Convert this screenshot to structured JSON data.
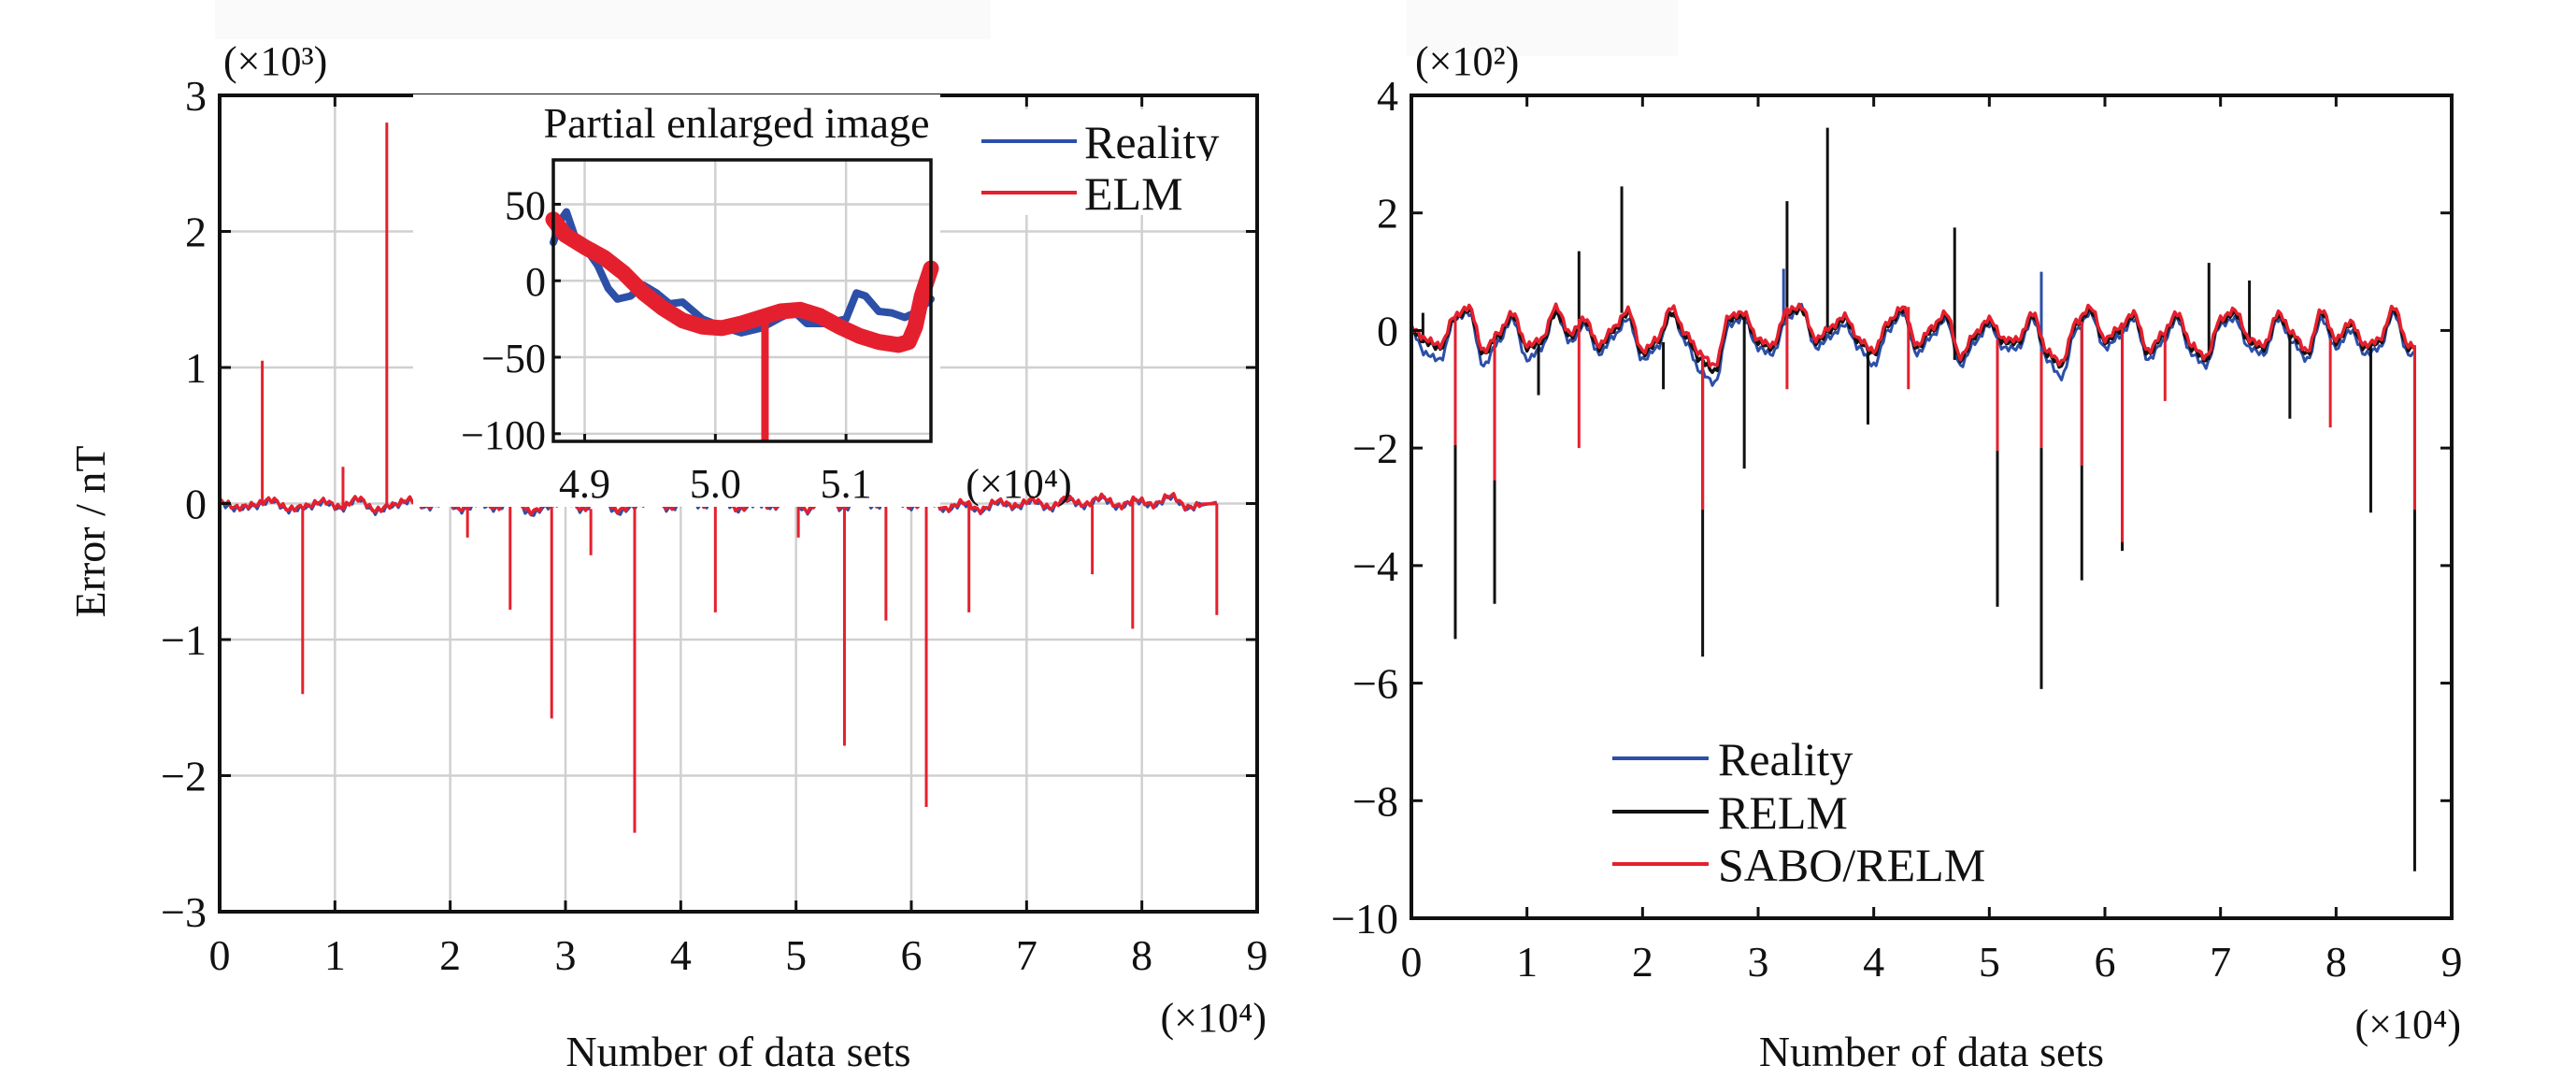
{
  "figure": {
    "colors": {
      "reality": "#2c4fa8",
      "elm": "#e5202e",
      "relm": "#111111",
      "sabo_relm": "#e5202e",
      "grid": "#d0d0d0",
      "axis": "#111111"
    }
  },
  "chart_data": [
    {
      "id": "left",
      "type": "line",
      "title": "",
      "xlabel": "Number of data sets",
      "ylabel": "Error / nT",
      "x_scale_label": "(×10⁴)",
      "y_scale_label": "(×10³)",
      "xlim": [
        0,
        9
      ],
      "ylim": [
        -3,
        3
      ],
      "xticks": [
        0,
        1,
        2,
        3,
        4,
        5,
        6,
        7,
        8,
        9
      ],
      "yticks": [
        -3,
        -2,
        -1,
        0,
        1,
        2,
        3
      ],
      "xtick_labels": [
        "0",
        "1",
        "2",
        "3",
        "4",
        "5",
        "6",
        "7",
        "8",
        "9"
      ],
      "ytick_labels": [
        "−3",
        "−2",
        "−1",
        "0",
        "1",
        "2",
        "3"
      ],
      "grid": true,
      "legend": {
        "placement": "top-right",
        "entries": [
          {
            "label": "Reality",
            "series": "reality"
          },
          {
            "label": "ELM",
            "series": "elm"
          }
        ]
      },
      "x_end": 8.65,
      "series": [
        {
          "name": "Reality",
          "key": "reality",
          "baseline_step": 0.15,
          "baseline": [
            0.0,
            -0.04,
            -0.02,
            0.02,
            -0.05,
            -0.03,
            0.01,
            -0.04,
            0.03,
            -0.06,
            -0.02,
            0.02,
            -0.03,
            0.01,
            -0.05,
            0.0,
            -0.04,
            0.03,
            -0.08,
            -0.02,
            0.02,
            -0.05,
            0.06,
            -0.07,
            -0.02,
            0.02,
            -0.04,
            0.01,
            -0.02,
            0.03,
            -0.05,
            0.0,
            -0.03,
            0.02,
            -0.06,
            0.08,
            -0.04,
            0.01,
            -0.02,
            0.03,
            -0.03,
            0.02,
            -0.05,
            0.0,
            -0.06,
            0.01,
            -0.03,
            0.02,
            -0.04,
            0.03,
            -0.02,
            0.04,
            -0.03,
            0.02,
            -0.02,
            0.05,
            -0.04,
            0.01
          ],
          "spikes": []
        },
        {
          "name": "ELM",
          "key": "elm",
          "baseline_step": 0.15,
          "baseline": [
            0.02,
            -0.03,
            -0.01,
            0.03,
            -0.04,
            -0.02,
            0.02,
            -0.03,
            0.04,
            -0.05,
            -0.01,
            0.03,
            -0.02,
            0.02,
            -0.04,
            0.01,
            -0.03,
            0.04,
            -0.06,
            -0.01,
            0.03,
            -0.04,
            0.05,
            -0.05,
            -0.01,
            0.03,
            -0.03,
            0.02,
            -0.01,
            0.04,
            -0.04,
            0.01,
            -0.02,
            0.03,
            -0.05,
            0.06,
            -0.03,
            0.02,
            -0.01,
            0.04,
            -0.02,
            0.03,
            -0.04,
            0.01,
            -0.05,
            0.02,
            -0.02,
            0.03,
            -0.03,
            0.04,
            -0.01,
            0.05,
            -0.02,
            0.03,
            -0.01,
            0.06,
            -0.03,
            0.0
          ],
          "spikes": [
            [
              0.37,
              1.05
            ],
            [
              0.72,
              -1.4
            ],
            [
              1.07,
              0.27
            ],
            [
              1.45,
              2.8
            ],
            [
              1.8,
              0.15
            ],
            [
              2.15,
              -0.25
            ],
            [
              2.52,
              -0.78
            ],
            [
              2.88,
              -1.58
            ],
            [
              3.22,
              -0.38
            ],
            [
              3.6,
              -2.42
            ],
            [
              3.95,
              0.2
            ],
            [
              4.3,
              -0.8
            ],
            [
              4.68,
              0.27
            ],
            [
              5.02,
              -0.25
            ],
            [
              5.42,
              -1.78
            ],
            [
              5.78,
              -0.86
            ],
            [
              6.13,
              -2.23
            ],
            [
              6.5,
              -0.8
            ],
            [
              7.57,
              -0.52
            ],
            [
              7.92,
              -0.92
            ],
            [
              8.65,
              -0.82
            ]
          ]
        }
      ],
      "inset": {
        "title": "Partial enlarged image",
        "x_scale_label": "(×10⁴)",
        "xlim": [
          4.876,
          5.165
        ],
        "ylim": [
          -105,
          79
        ],
        "xticks": [
          4.9,
          5.0,
          5.1
        ],
        "xtick_labels": [
          "4.9",
          "5.0",
          "5.1"
        ],
        "yticks": [
          -100,
          -50,
          0,
          50
        ],
        "ytick_labels": [
          "−100",
          "−50",
          "0",
          "50"
        ],
        "grid": true,
        "series": [
          {
            "name": "Reality",
            "key": "reality",
            "points": [
              [
                4.876,
                25
              ],
              [
                4.882,
                40
              ],
              [
                4.886,
                45
              ],
              [
                4.892,
                30
              ],
              [
                4.9,
                22
              ],
              [
                4.91,
                10
              ],
              [
                4.918,
                -5
              ],
              [
                4.925,
                -12
              ],
              [
                4.935,
                -10
              ],
              [
                4.945,
                -3
              ],
              [
                4.955,
                -8
              ],
              [
                4.965,
                -15
              ],
              [
                4.975,
                -14
              ],
              [
                4.99,
                -25
              ],
              [
                5.005,
                -30
              ],
              [
                5.02,
                -34
              ],
              [
                5.035,
                -31
              ],
              [
                5.05,
                -24
              ],
              [
                5.06,
                -20
              ],
              [
                5.07,
                -28
              ],
              [
                5.085,
                -28
              ],
              [
                5.1,
                -25
              ],
              [
                5.108,
                -8
              ],
              [
                5.115,
                -10
              ],
              [
                5.125,
                -20
              ],
              [
                5.135,
                -21
              ],
              [
                5.145,
                -24
              ],
              [
                5.155,
                -20
              ],
              [
                5.165,
                -12
              ]
            ]
          },
          {
            "name": "ELM",
            "key": "elm",
            "points": [
              [
                4.876,
                40
              ],
              [
                4.885,
                30
              ],
              [
                4.9,
                22
              ],
              [
                4.915,
                15
              ],
              [
                4.93,
                5
              ],
              [
                4.945,
                -8
              ],
              [
                4.96,
                -18
              ],
              [
                4.975,
                -26
              ],
              [
                4.99,
                -30
              ],
              [
                5.005,
                -31
              ],
              [
                5.02,
                -28
              ],
              [
                5.035,
                -24
              ],
              [
                5.05,
                -20
              ],
              [
                5.065,
                -19
              ],
              [
                5.08,
                -23
              ],
              [
                5.095,
                -30
              ],
              [
                5.11,
                -36
              ],
              [
                5.125,
                -40
              ],
              [
                5.14,
                -42
              ],
              [
                5.148,
                -40
              ],
              [
                5.153,
                -30
              ],
              [
                5.158,
                -10
              ],
              [
                5.165,
                8
              ]
            ],
            "spikes": [
              [
                5.038,
                -105
              ]
            ]
          }
        ]
      }
    },
    {
      "id": "right",
      "type": "line",
      "title": "",
      "xlabel": "Number of data sets",
      "ylabel": "",
      "x_scale_label": "(×10⁴)",
      "y_scale_label": "(×10²)",
      "xlim": [
        0,
        9
      ],
      "ylim": [
        -10,
        4
      ],
      "xticks": [
        0,
        1,
        2,
        3,
        4,
        5,
        6,
        7,
        8,
        9
      ],
      "yticks": [
        -10,
        -8,
        -6,
        -4,
        -2,
        0,
        2,
        4
      ],
      "xtick_labels": [
        "0",
        "1",
        "2",
        "3",
        "4",
        "5",
        "6",
        "7",
        "8",
        "9"
      ],
      "ytick_labels": [
        "−10",
        "−8",
        "−6",
        "−4",
        "−2",
        "0",
        "2",
        "4"
      ],
      "grid": false,
      "legend": {
        "placement": "lower-left",
        "entries": [
          {
            "label": "Reality",
            "series": "reality"
          },
          {
            "label": "RELM",
            "series": "relm"
          },
          {
            "label": "SABO/RELM",
            "series": "sabo_relm"
          }
        ]
      },
      "x_end": 8.68,
      "series": [
        {
          "name": "Reality",
          "key": "reality",
          "baseline_step": 0.125,
          "baseline": [
            0.0,
            -0.4,
            -0.5,
            0.2,
            0.3,
            -0.6,
            -0.2,
            0.2,
            -0.5,
            -0.3,
            0.3,
            -0.2,
            0.1,
            -0.4,
            -0.1,
            0.2,
            -0.5,
            -0.3,
            0.3,
            -0.2,
            -0.7,
            -0.9,
            0.1,
            0.2,
            -0.3,
            -0.4,
            0.2,
            0.4,
            -0.3,
            -0.1,
            0.1,
            -0.3,
            -0.6,
            0.0,
            0.3,
            -0.4,
            -0.1,
            0.2,
            -0.6,
            -0.2,
            0.1,
            -0.3,
            -0.3,
            0.2,
            -0.5,
            -0.8,
            0.0,
            0.3,
            -0.3,
            -0.1,
            0.2,
            -0.5,
            -0.2,
            0.2,
            -0.4,
            -0.6,
            0.1,
            0.2,
            -0.3,
            -0.4,
            0.2,
            -0.2,
            -0.5,
            0.2,
            -0.3,
            0.0,
            -0.4,
            -0.3,
            0.3,
            -0.4,
            -0.5
          ],
          "spikes": [
            [
              3.22,
              1.05
            ],
            [
              5.45,
              1.0
            ]
          ]
        },
        {
          "name": "RELM",
          "key": "relm",
          "baseline_step": 0.125,
          "baseline": [
            0.0,
            -0.2,
            -0.3,
            0.2,
            0.35,
            -0.4,
            -0.1,
            0.25,
            -0.3,
            -0.2,
            0.3,
            -0.1,
            0.15,
            -0.3,
            0.0,
            0.3,
            -0.4,
            -0.2,
            0.3,
            -0.1,
            -0.5,
            -0.7,
            0.2,
            0.25,
            -0.2,
            -0.3,
            0.3,
            0.35,
            -0.2,
            0.0,
            0.2,
            -0.2,
            -0.4,
            0.1,
            0.35,
            -0.3,
            0.0,
            0.25,
            -0.5,
            -0.1,
            0.15,
            -0.2,
            -0.2,
            0.25,
            -0.4,
            -0.6,
            0.1,
            0.35,
            -0.2,
            0.0,
            0.25,
            -0.4,
            -0.1,
            0.25,
            -0.3,
            -0.5,
            0.15,
            0.3,
            -0.2,
            -0.3,
            0.25,
            -0.1,
            -0.4,
            0.3,
            -0.2,
            0.1,
            -0.3,
            -0.2,
            0.35,
            -0.3,
            -0.3
          ],
          "spikes": [
            [
              0.1,
              0.3
            ],
            [
              0.38,
              -5.25
            ],
            [
              0.72,
              -4.65
            ],
            [
              1.1,
              -1.1
            ],
            [
              1.45,
              1.35
            ],
            [
              1.82,
              2.45
            ],
            [
              2.18,
              -1.0
            ],
            [
              2.52,
              -5.55
            ],
            [
              2.88,
              -2.35
            ],
            [
              3.25,
              2.2
            ],
            [
              3.6,
              3.45
            ],
            [
              3.95,
              -1.6
            ],
            [
              4.7,
              1.75
            ],
            [
              5.07,
              -4.7
            ],
            [
              5.45,
              -6.1
            ],
            [
              5.8,
              -4.25
            ],
            [
              6.15,
              -3.75
            ],
            [
              6.9,
              1.15
            ],
            [
              7.25,
              0.85
            ],
            [
              7.6,
              -1.5
            ],
            [
              8.3,
              -3.1
            ],
            [
              8.68,
              -9.2
            ]
          ]
        },
        {
          "name": "SABO/RELM",
          "key": "sabo_relm",
          "baseline_step": 0.125,
          "baseline": [
            0.05,
            -0.15,
            -0.25,
            0.25,
            0.4,
            -0.35,
            -0.05,
            0.3,
            -0.25,
            -0.15,
            0.4,
            -0.05,
            0.2,
            -0.25,
            0.05,
            0.35,
            -0.35,
            -0.15,
            0.4,
            -0.05,
            -0.4,
            -0.6,
            0.25,
            0.3,
            -0.15,
            -0.25,
            0.35,
            0.4,
            -0.15,
            0.05,
            0.25,
            -0.15,
            -0.35,
            0.15,
            0.4,
            -0.25,
            0.05,
            0.3,
            -0.45,
            -0.05,
            0.2,
            -0.15,
            -0.15,
            0.3,
            -0.35,
            -0.55,
            0.15,
            0.4,
            -0.15,
            0.05,
            0.3,
            -0.35,
            -0.05,
            0.3,
            -0.25,
            -0.45,
            0.2,
            0.35,
            -0.15,
            -0.25,
            0.3,
            -0.05,
            -0.35,
            0.35,
            -0.15,
            0.15,
            -0.25,
            -0.15,
            0.4,
            -0.25,
            -0.3
          ],
          "spikes": [
            [
              0.38,
              -1.95
            ],
            [
              0.72,
              -2.55
            ],
            [
              1.45,
              -2.0
            ],
            [
              2.52,
              -3.05
            ],
            [
              3.25,
              -1.0
            ],
            [
              4.3,
              -1.0
            ],
            [
              5.07,
              -2.05
            ],
            [
              5.45,
              -2.0
            ],
            [
              5.8,
              -2.3
            ],
            [
              6.15,
              -3.6
            ],
            [
              6.52,
              -1.2
            ],
            [
              7.95,
              -1.65
            ],
            [
              8.68,
              -3.05
            ]
          ]
        }
      ]
    }
  ]
}
